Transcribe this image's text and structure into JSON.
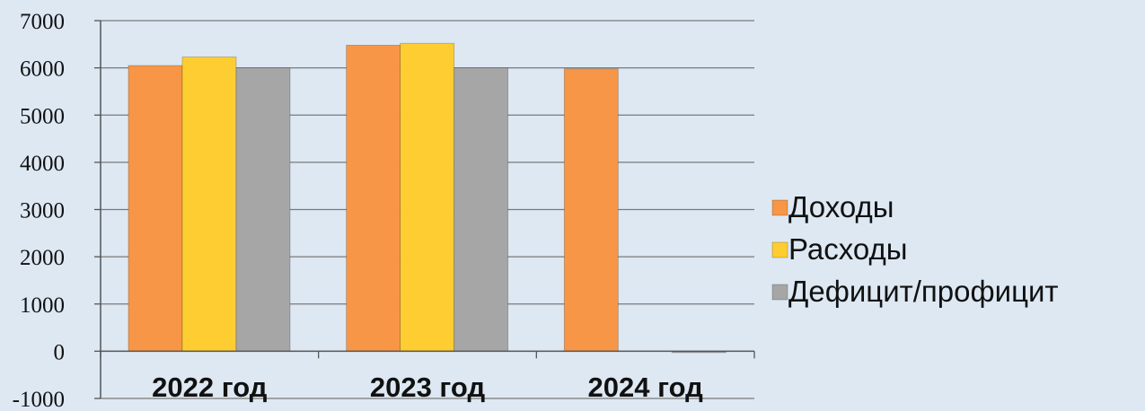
{
  "chart_data": {
    "type": "bar",
    "categories": [
      "2022 год",
      "2023 год",
      "2024 год"
    ],
    "series": [
      {
        "name": "Доходы",
        "values": [
          6050,
          6480,
          5980
        ],
        "color": "#f79646"
      },
      {
        "name": "Расходы",
        "values": [
          6230,
          6520,
          null
        ],
        "color": "#fdcd32"
      },
      {
        "name": "Дефицит/профицит",
        "values": [
          6000,
          6000,
          -30
        ],
        "color": "#a6a6a6"
      }
    ],
    "ylim": [
      -1000,
      7000
    ],
    "yticks": [
      "7000",
      "6000",
      "5000",
      "4000",
      "3000",
      "2000",
      "1000",
      "0",
      "-1000"
    ],
    "grid": true,
    "legend_position": "right",
    "title": "",
    "xlabel": "",
    "ylabel": ""
  }
}
